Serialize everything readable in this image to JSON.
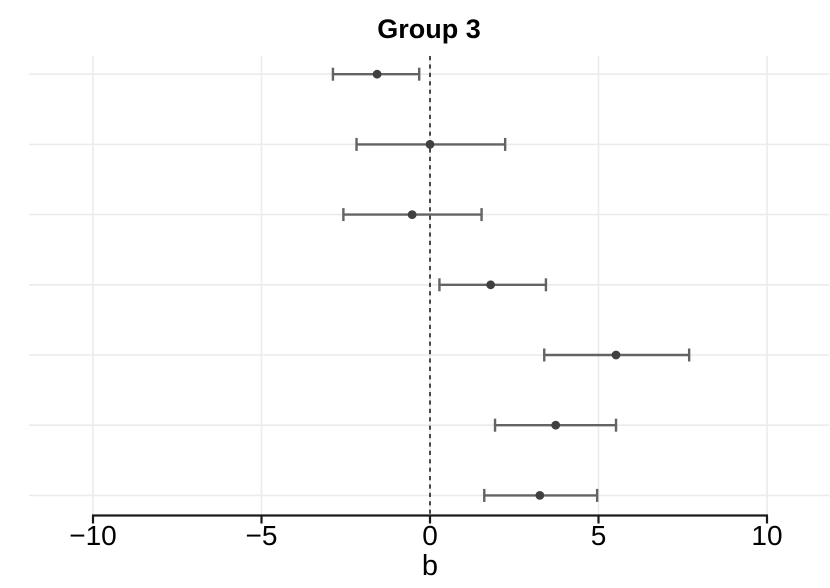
{
  "chart_data": {
    "type": "scatter",
    "variant": "forest-plot-horizontal-errorbars",
    "title": "Group 3",
    "xlabel": "b",
    "ylabel": "",
    "xlim": [
      -11.9,
      11.85
    ],
    "xticks": [
      -10,
      -5,
      0,
      5,
      10
    ],
    "xtick_labels": [
      "−10",
      "−5",
      "0",
      "5",
      "10"
    ],
    "reference_line_x": 0,
    "reference_line_style": "dashed",
    "grid": "major-only",
    "legend": "none",
    "rows": [
      {
        "estimate": -1.57,
        "ci_low": -2.88,
        "ci_high": -0.32
      },
      {
        "estimate": 0.0,
        "ci_low": -2.18,
        "ci_high": 2.23
      },
      {
        "estimate": -0.53,
        "ci_low": -2.57,
        "ci_high": 1.53
      },
      {
        "estimate": 1.8,
        "ci_low": 0.28,
        "ci_high": 3.44
      },
      {
        "estimate": 5.52,
        "ci_low": 3.39,
        "ci_high": 7.69
      },
      {
        "estimate": 3.73,
        "ci_low": 1.93,
        "ci_high": 5.52
      },
      {
        "estimate": 3.26,
        "ci_low": 1.61,
        "ci_high": 4.96
      }
    ],
    "colors": {
      "point": "#404040",
      "errorbar": "#636363",
      "gridline": "#ebebeb",
      "reference_line": "#000000",
      "axis": "#1a1a1a",
      "text": "#000000",
      "background": "#ffffff"
    }
  }
}
